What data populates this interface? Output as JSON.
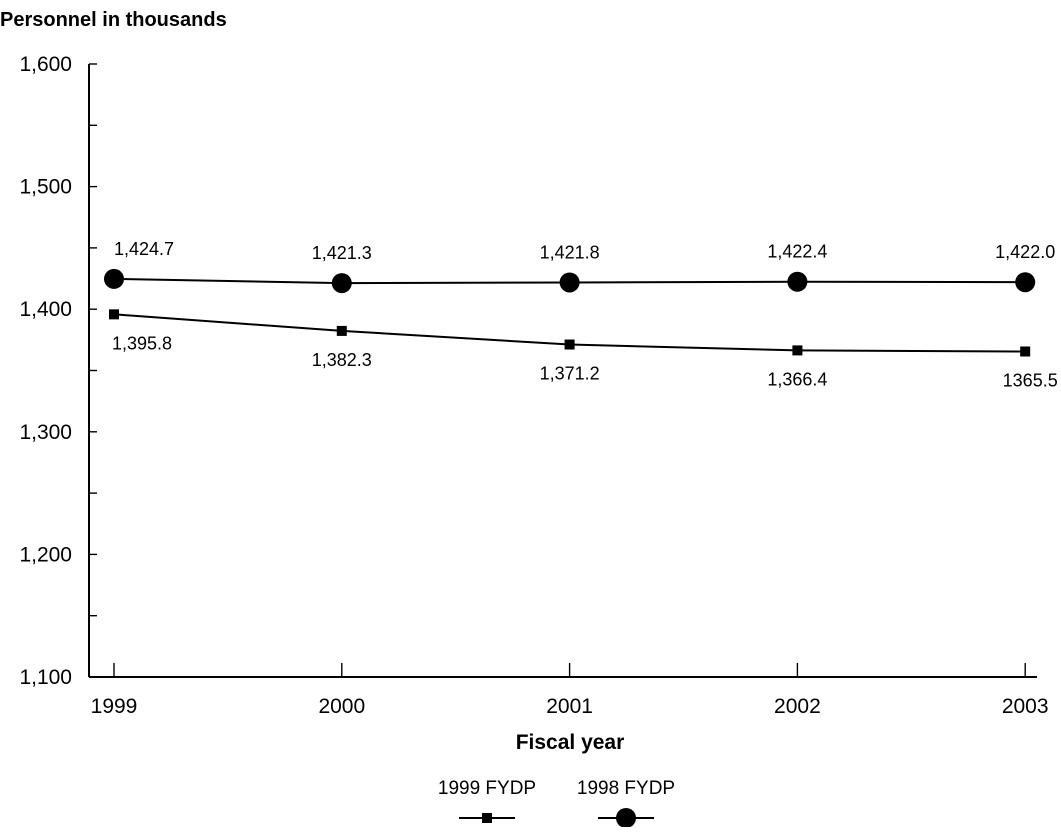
{
  "chart_data": {
    "type": "line",
    "ylabel": "Personnel in thousands",
    "xlabel": "Fiscal year",
    "ylim": [
      1100,
      1600
    ],
    "yticks": [
      1100,
      1200,
      1300,
      1400,
      1500,
      1600
    ],
    "ytick_labels": [
      "1,100",
      "1,200",
      "1,300",
      "1,400",
      "1,500",
      "1,600"
    ],
    "categories": [
      "1999",
      "2000",
      "2001",
      "2002",
      "2003"
    ],
    "grid": false,
    "legend_position": "bottom-center",
    "series": [
      {
        "name": "1999 FYDP",
        "marker": "square",
        "color": "#000000",
        "values": [
          1395.8,
          1382.3,
          1371.2,
          1366.4,
          1365.5
        ],
        "labels": [
          "1,395.8",
          "1,382.3",
          "1,371.2",
          "1,366.4",
          "1365.5"
        ]
      },
      {
        "name": "1998 FYDP",
        "marker": "circle",
        "color": "#000000",
        "values": [
          1424.7,
          1421.3,
          1421.8,
          1422.4,
          1422.0
        ],
        "labels": [
          "1,424.7",
          "1,421.3",
          "1,421.8",
          "1,422.4",
          "1,422.0"
        ]
      }
    ]
  }
}
